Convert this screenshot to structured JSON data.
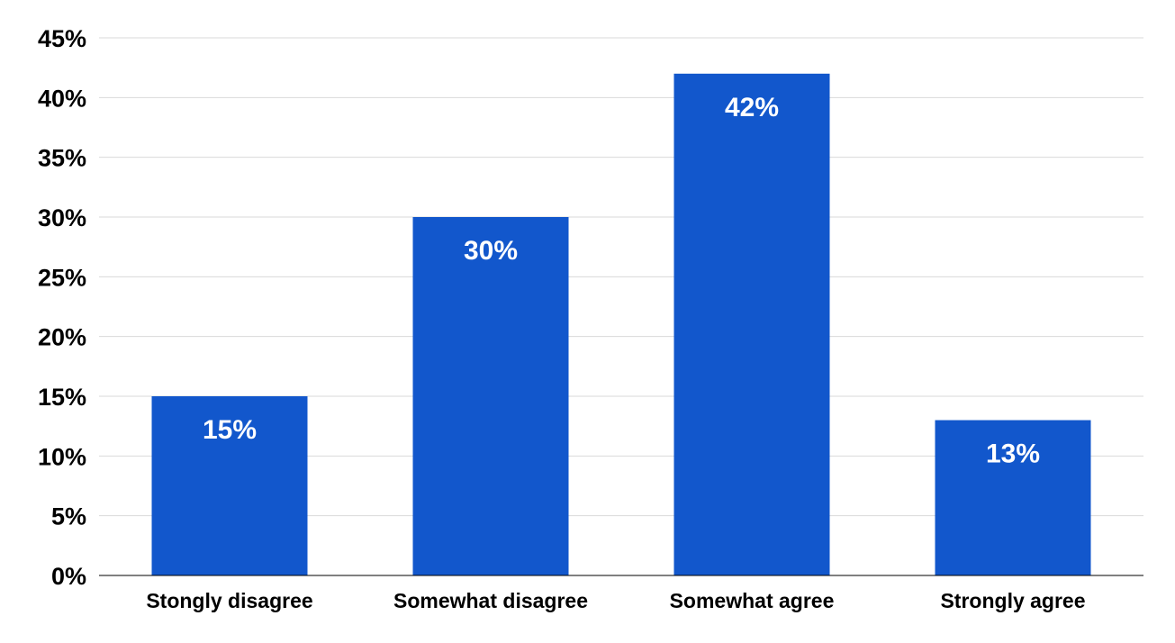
{
  "chart_data": {
    "type": "bar",
    "categories": [
      "Stongly disagree",
      "Somewhat disagree",
      "Somewhat agree",
      "Strongly agree"
    ],
    "values": [
      15,
      30,
      42,
      13
    ],
    "data_labels": [
      "15%",
      "30%",
      "42%",
      "13%"
    ],
    "y_ticks": [
      0,
      5,
      10,
      15,
      20,
      25,
      30,
      35,
      40,
      45
    ],
    "y_tick_labels": [
      "0%",
      "5%",
      "10%",
      "15%",
      "20%",
      "25%",
      "30%",
      "35%",
      "40%",
      "45%"
    ],
    "ylim": [
      0,
      45
    ],
    "grid": true,
    "legend": "none",
    "title": "",
    "xlabel": "",
    "ylabel": "",
    "colors": {
      "bar": "#1257CC",
      "grid": "#D9D9D9",
      "axis": "#000000",
      "data_label": "#ffffff"
    }
  }
}
